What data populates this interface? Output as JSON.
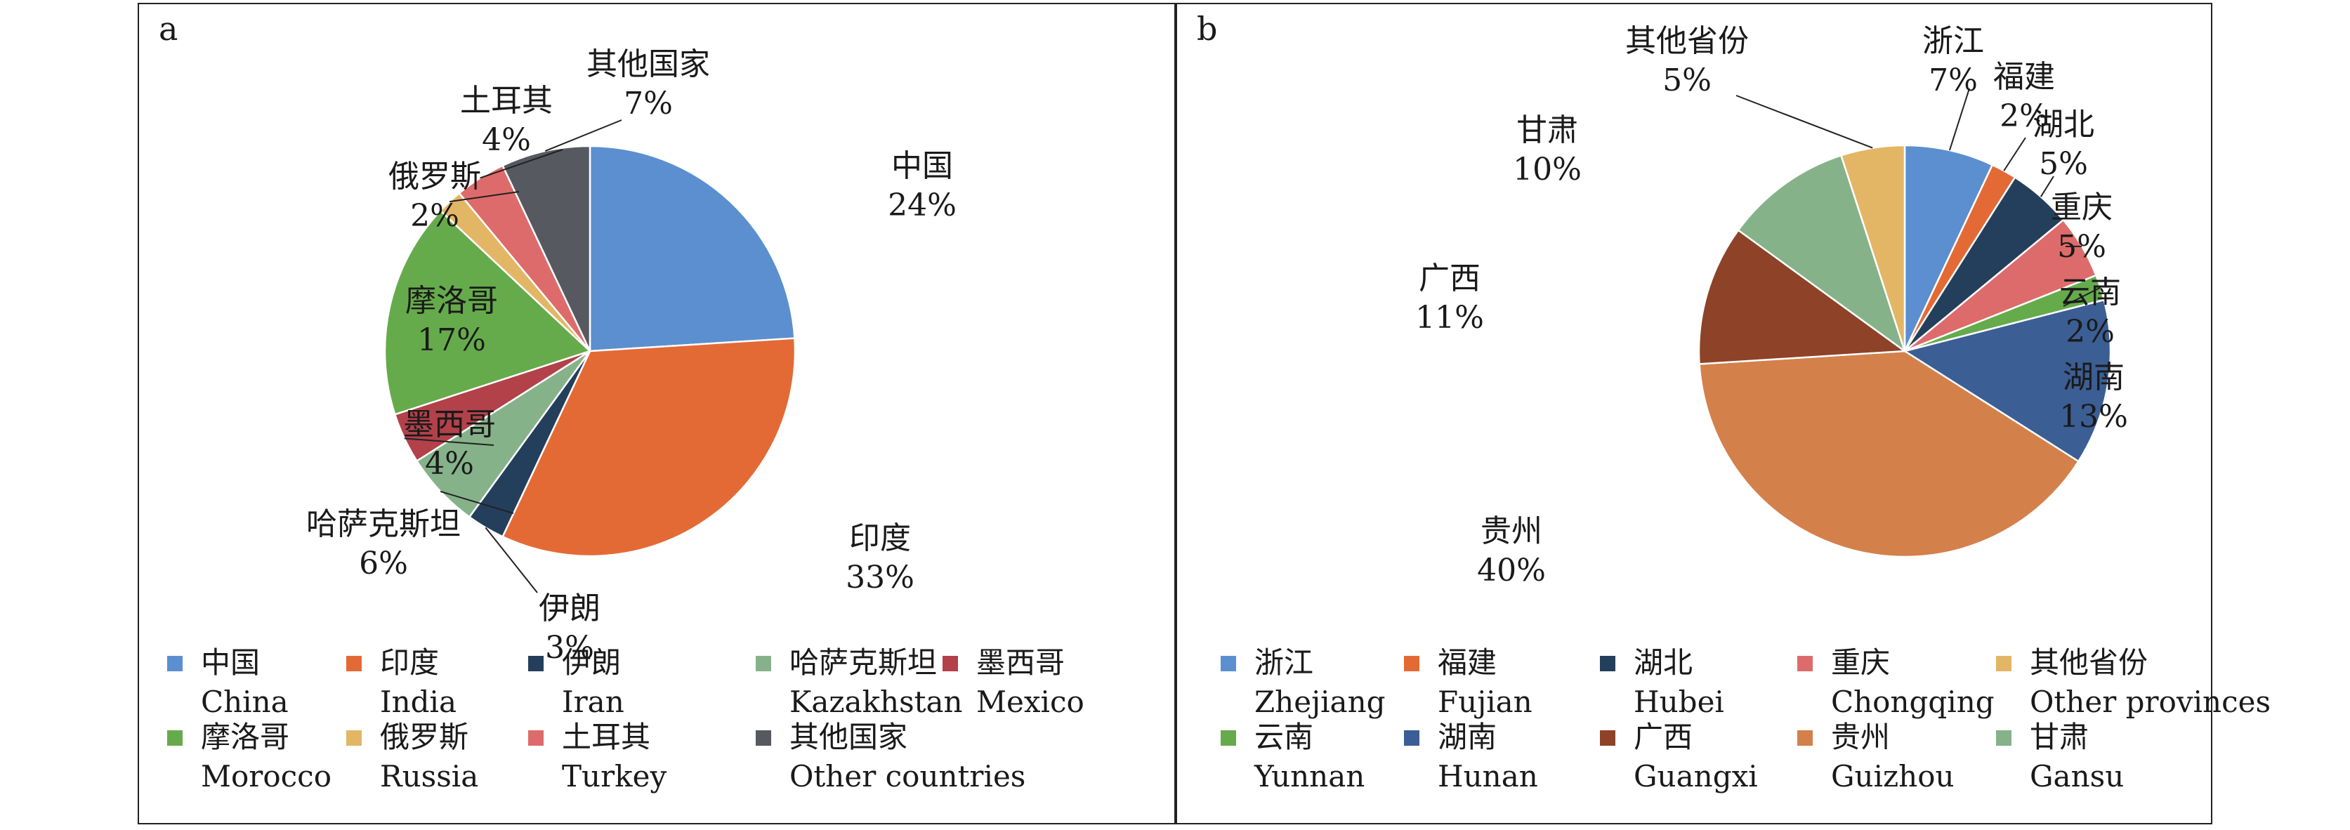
{
  "chart_data": [
    {
      "panel": "a",
      "type": "pie",
      "title": "",
      "slices": [
        {
          "zh": "中国",
          "en": "China",
          "value": 24,
          "label": "24%",
          "color": "#5b8fcf"
        },
        {
          "zh": "印度",
          "en": "India",
          "value": 33,
          "label": "33%",
          "color": "#e46a35"
        },
        {
          "zh": "伊朗",
          "en": "Iran",
          "value": 3,
          "label": "3%",
          "color": "#243f5c"
        },
        {
          "zh": "哈萨克斯坦",
          "en": "Kazakhstan",
          "value": 6,
          "label": "6%",
          "color": "#86b28a"
        },
        {
          "zh": "墨西哥",
          "en": "Mexico",
          "value": 4,
          "label": "4%",
          "color": "#b2414a"
        },
        {
          "zh": "摩洛哥",
          "en": "Morocco",
          "value": 17,
          "label": "17%",
          "color": "#66ab4b"
        },
        {
          "zh": "俄罗斯",
          "en": "Russia",
          "value": 2,
          "label": "2%",
          "color": "#e3b666"
        },
        {
          "zh": "土耳其",
          "en": "Turkey",
          "value": 4,
          "label": "4%",
          "color": "#de6b6b"
        },
        {
          "zh": "其他国家",
          "en": "Other countries",
          "value": 7,
          "label": "7%",
          "color": "#575961"
        }
      ]
    },
    {
      "panel": "b",
      "type": "pie",
      "title": "",
      "slices": [
        {
          "zh": "浙江",
          "en": "Zhejiang",
          "value": 7,
          "label": "7%",
          "color": "#5b8fcf"
        },
        {
          "zh": "福建",
          "en": "Fujian",
          "value": 2,
          "label": "2%",
          "color": "#e46a35"
        },
        {
          "zh": "湖北",
          "en": "Hubei",
          "value": 5,
          "label": "5%",
          "color": "#243f5c"
        },
        {
          "zh": "重庆",
          "en": "Chongqing",
          "value": 5,
          "label": "5%",
          "color": "#de6b6b"
        },
        {
          "zh": "云南",
          "en": "Yunnan",
          "value": 2,
          "label": "2%",
          "color": "#66ab4b"
        },
        {
          "zh": "湖南",
          "en": "Hunan",
          "value": 13,
          "label": "13%",
          "color": "#3b5e94"
        },
        {
          "zh": "贵州",
          "en": "Guizhou",
          "value": 40,
          "label": "40%",
          "color": "#d4804b"
        },
        {
          "zh": "广西",
          "en": "Guangxi",
          "value": 11,
          "label": "11%",
          "color": "#8e4228"
        },
        {
          "zh": "甘肃",
          "en": "Gansu",
          "value": 10,
          "label": "10%",
          "color": "#86b28a"
        },
        {
          "zh": "其他省份",
          "en": "Other provinces",
          "value": 5,
          "label": "5%",
          "color": "#e3b666"
        }
      ],
      "legend_order": [
        "浙江",
        "福建",
        "湖北",
        "重庆",
        "其他省份",
        "云南",
        "湖南",
        "广西",
        "贵州",
        "甘肃"
      ]
    }
  ]
}
